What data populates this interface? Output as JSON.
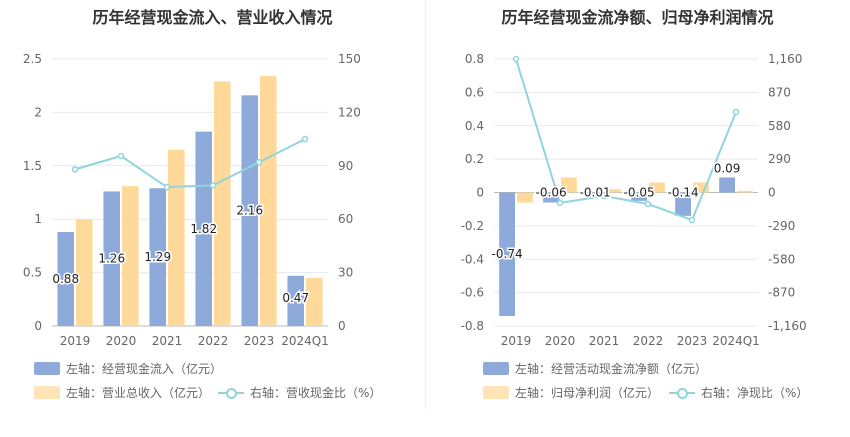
{
  "colors": {
    "blue": "#8eaadb",
    "orange": "#ffd99a",
    "line": "#8fd5dc"
  },
  "chart_data": [
    {
      "type": "bar",
      "title": "历年经营现金流入、营业收入情况",
      "categories": [
        "2019",
        "2020",
        "2021",
        "2022",
        "2023",
        "2024Q1"
      ],
      "ylim": [
        0,
        2.5
      ],
      "y_ticks": [
        "0",
        "0.5",
        "1",
        "1.5",
        "2",
        "2.5"
      ],
      "y2lim": [
        0,
        150
      ],
      "y2_ticks": [
        "0",
        "30",
        "60",
        "90",
        "120",
        "150"
      ],
      "series": [
        {
          "name": "左轴：经营现金流入（亿元）",
          "axis": "left",
          "kind": "bar",
          "values": [
            0.88,
            1.26,
            1.29,
            1.82,
            2.16,
            0.47
          ],
          "labels": [
            "0.88",
            "1.26",
            "1.29",
            "1.82",
            "2.16",
            "0.47"
          ]
        },
        {
          "name": "左轴：营业总收入（亿元）",
          "axis": "left",
          "kind": "bar",
          "values": [
            1.0,
            1.31,
            1.65,
            2.29,
            2.34,
            0.45
          ]
        },
        {
          "name": "右轴：营收现金比（%）",
          "axis": "right",
          "kind": "line",
          "values": [
            88,
            95.5,
            78,
            79,
            92,
            105
          ]
        }
      ],
      "grid": true,
      "legend_position": "bottom"
    },
    {
      "type": "bar",
      "title": "历年经营现金流净额、归母净利润情况",
      "categories": [
        "2019",
        "2020",
        "2021",
        "2022",
        "2023",
        "2024Q1"
      ],
      "ylim": [
        -0.8,
        0.8
      ],
      "y_ticks": [
        "-0.8",
        "-0.6",
        "-0.4",
        "-0.2",
        "0",
        "0.2",
        "0.4",
        "0.6",
        "0.8"
      ],
      "y2lim": [
        -1160,
        1160
      ],
      "y2_ticks": [
        "-1,160",
        "-870",
        "-580",
        "-290",
        "0",
        "290",
        "580",
        "870",
        "1,160"
      ],
      "series": [
        {
          "name": "左轴：经营活动现金流净额（亿元）",
          "axis": "left",
          "kind": "bar",
          "values": [
            -0.74,
            -0.06,
            -0.01,
            -0.05,
            -0.14,
            0.09
          ],
          "labels": [
            "-0.74",
            "-0.06",
            "-0.01",
            "-0.05",
            "-0.14",
            "0.09"
          ]
        },
        {
          "name": "左轴：归母净利润（亿元）",
          "axis": "left",
          "kind": "bar",
          "values": [
            -0.06,
            0.09,
            0.02,
            0.06,
            0.06,
            0.01
          ]
        },
        {
          "name": "右轴：净现比（%）",
          "axis": "right",
          "kind": "line",
          "values": [
            1160,
            -90,
            -30,
            -100,
            -240,
            700
          ]
        }
      ],
      "grid": true,
      "legend_position": "bottom"
    }
  ]
}
